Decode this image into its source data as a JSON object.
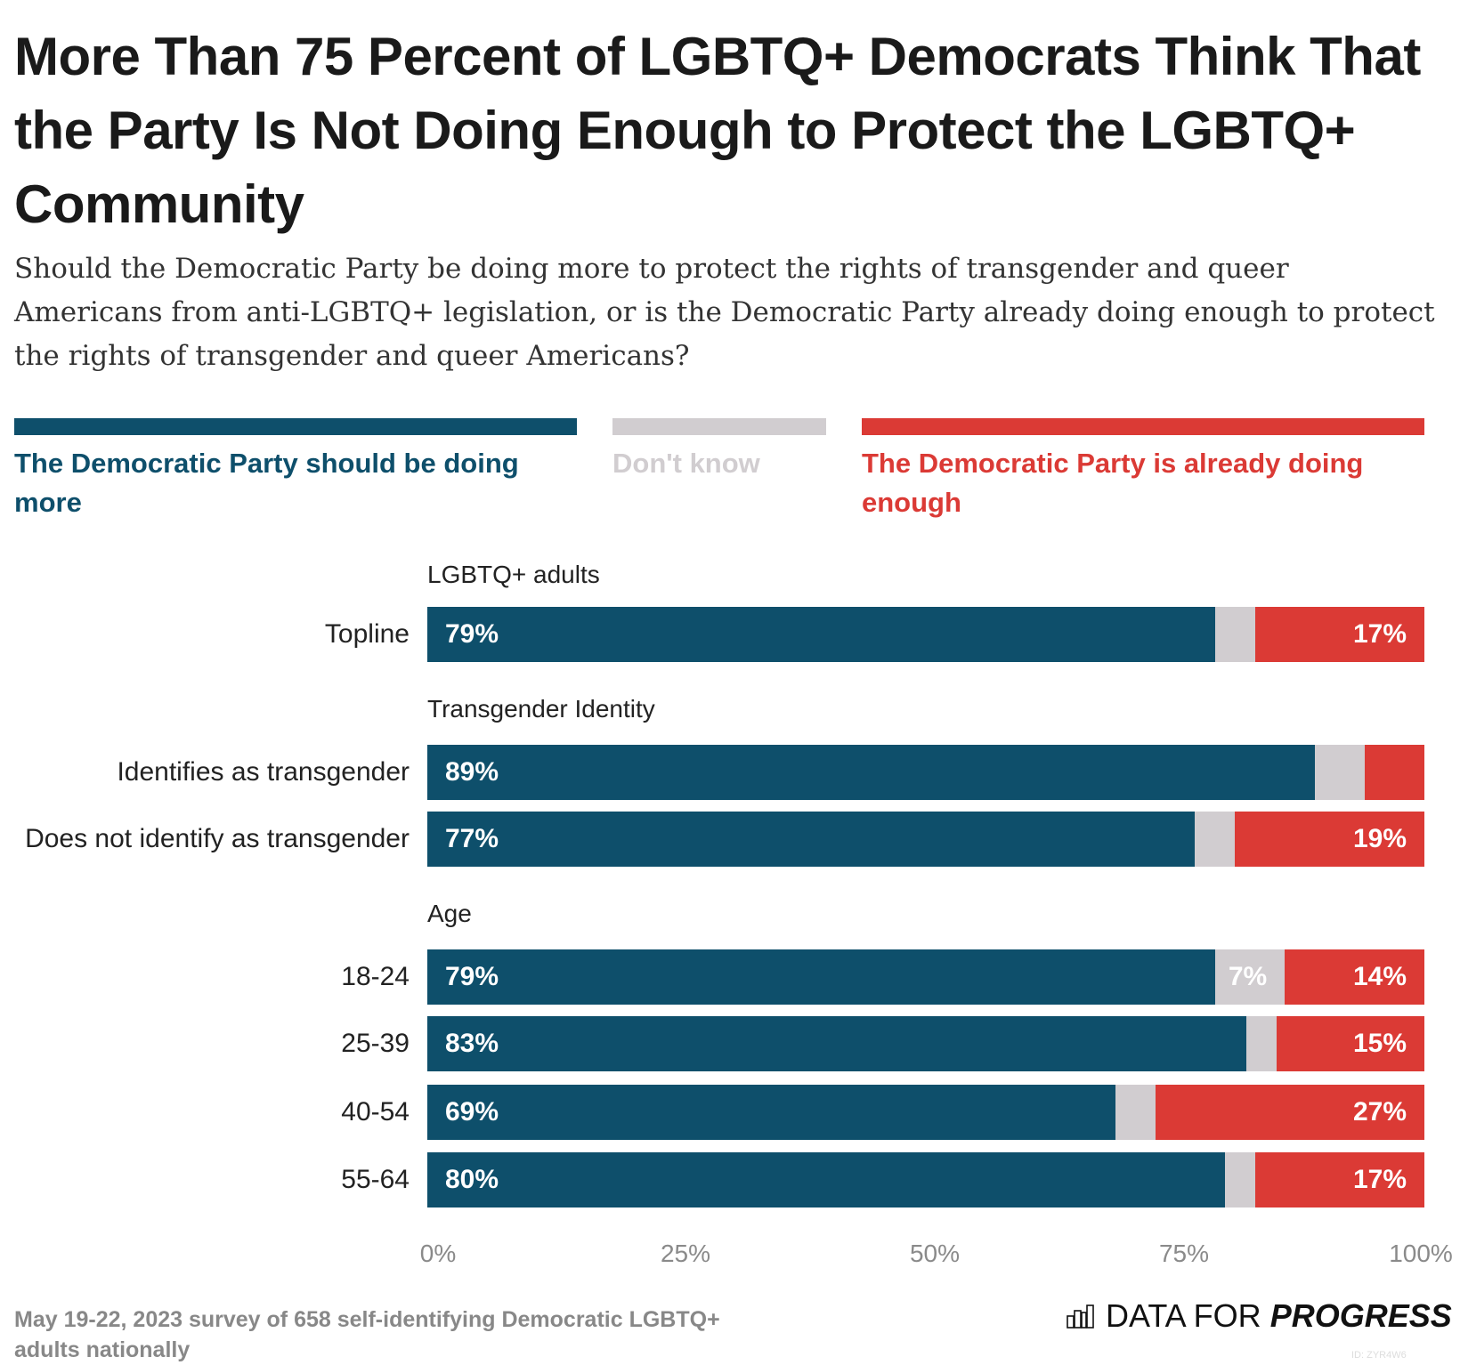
{
  "chart_data": {
    "type": "bar",
    "orientation": "horizontal",
    "stacked": true,
    "title": "More Than 75 Percent of LGBTQ+ Democrats Think That the Party Is Not Doing Enough to Protect the LGBTQ+ Community",
    "subtitle": "Should the Democratic Party be doing more to protect the rights of transgender and queer Americans from anti-LGBTQ+ legislation, or is the Democratic Party already doing enough to protect the rights of transgender and queer Americans?",
    "xlim": [
      0,
      100
    ],
    "x_ticks": [
      "0%",
      "25%",
      "50%",
      "75%",
      "100%"
    ],
    "legend_position": "top",
    "series": [
      {
        "name": "The Democratic Party should be doing more",
        "color": "#0e4f6b"
      },
      {
        "name": "Don't know",
        "color": "#d1cdd0"
      },
      {
        "name": "The Democratic Party is already doing enough",
        "color": "#db3a35"
      }
    ],
    "groups": [
      {
        "label": "LGBTQ+ adults",
        "rows": [
          {
            "label": "Topline",
            "values": [
              79,
              4,
              17
            ],
            "labels": [
              "79%",
              "",
              "17%"
            ]
          }
        ]
      },
      {
        "label": "Transgender Identity",
        "rows": [
          {
            "label": "Identifies as transgender",
            "values": [
              89,
              5,
              6
            ],
            "labels": [
              "89%",
              "",
              ""
            ]
          },
          {
            "label": "Does not identify as transgender",
            "values": [
              77,
              4,
              19
            ],
            "labels": [
              "77%",
              "",
              "19%"
            ]
          }
        ]
      },
      {
        "label": "Age",
        "rows": [
          {
            "label": "18-24",
            "values": [
              79,
              7,
              14
            ],
            "labels": [
              "79%",
              "7%",
              "14%"
            ]
          },
          {
            "label": "25-39",
            "values": [
              83,
              3,
              15
            ],
            "labels": [
              "83%",
              "",
              "15%"
            ]
          },
          {
            "label": "40-54",
            "values": [
              69,
              4,
              27
            ],
            "labels": [
              "69%",
              "",
              "27%"
            ]
          },
          {
            "label": "55-64",
            "values": [
              80,
              3,
              17
            ],
            "labels": [
              "80%",
              "",
              "17%"
            ]
          }
        ]
      }
    ]
  },
  "footer": {
    "note": "May 19-22, 2023 survey of 658 self-identifying Democratic LGBTQ+ adults nationally",
    "logo_regular": "DATA FOR",
    "logo_bold": "PROGRESS",
    "chart_id": "ID: ZYR4W6",
    "logo_icon": "bar-chart-icon"
  }
}
